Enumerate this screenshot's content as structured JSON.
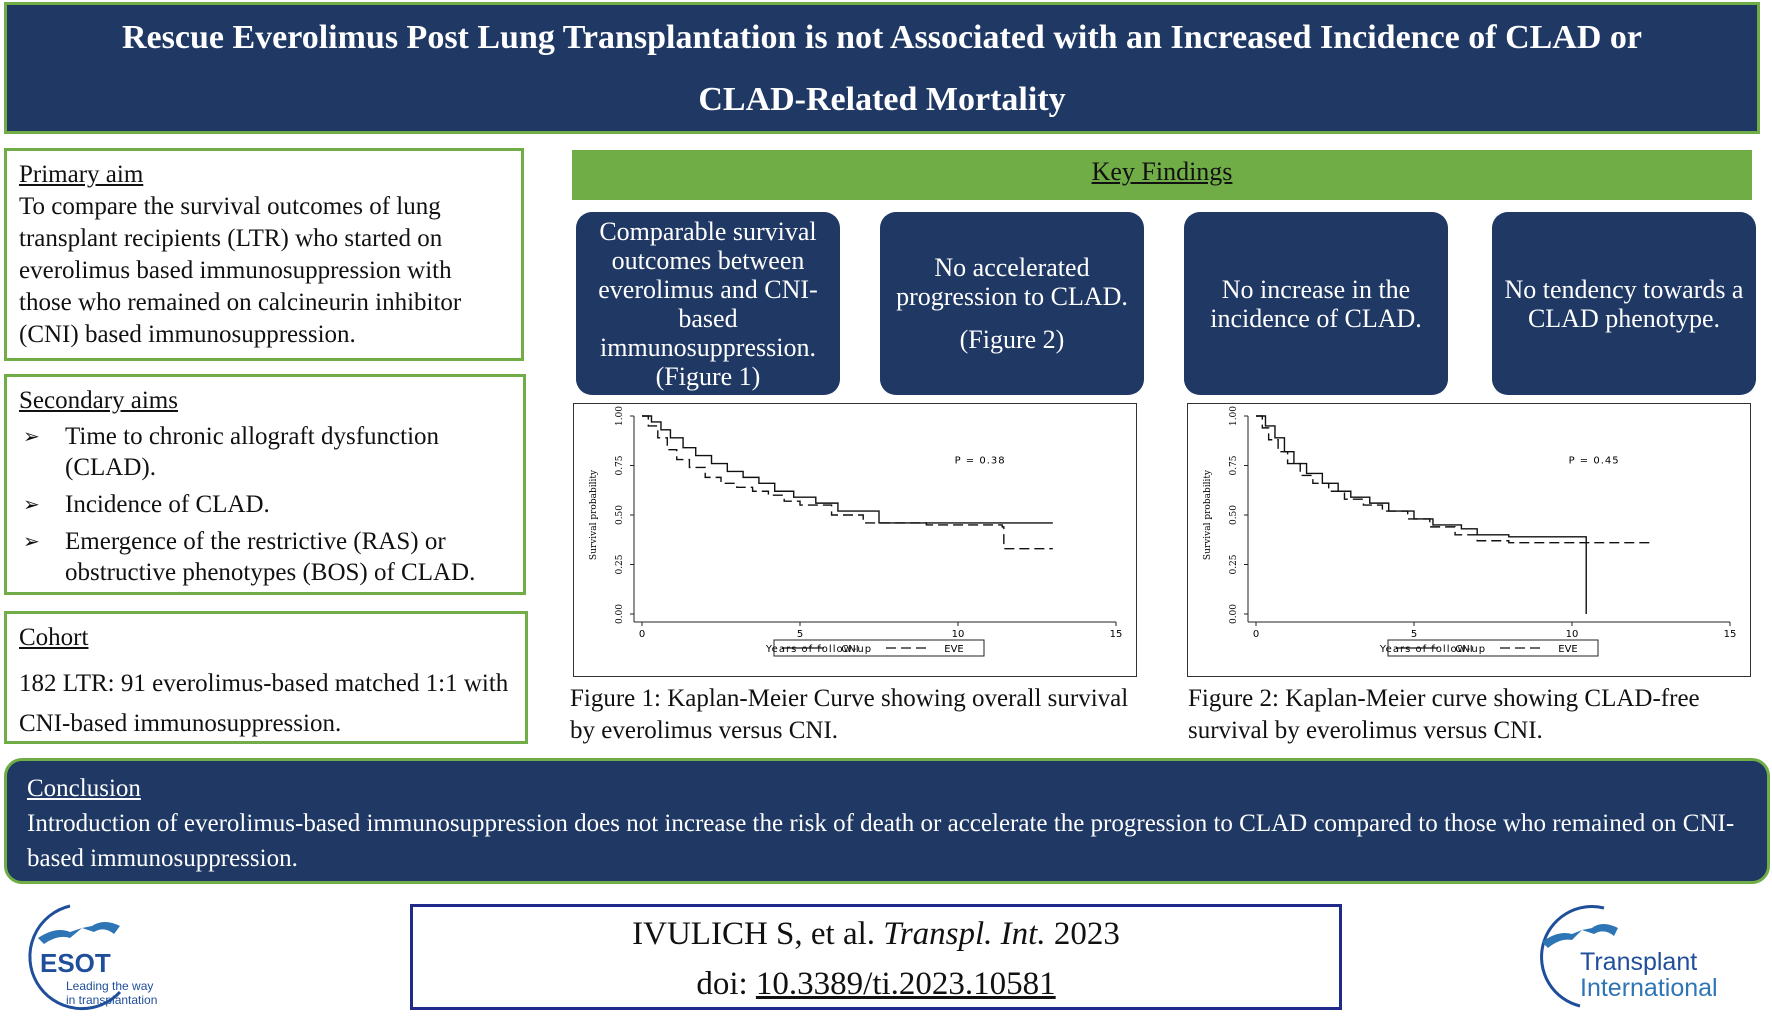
{
  "title": {
    "line1": "Rescue Everolimus Post Lung Transplantation is not Associated with an Increased Incidence of CLAD or",
    "line2": "CLAD-Related Mortality"
  },
  "primary_aim": {
    "heading": "Primary aim",
    "text": "To compare the survival outcomes of lung transplant recipients (LTR) who started on everolimus based immunosuppression with those who remained on calcineurin inhibitor (CNI) based immunosuppression."
  },
  "secondary_aims": {
    "heading": "Secondary aims",
    "items": [
      "Time to chronic allograft dysfunction (CLAD).",
      "Incidence of CLAD.",
      "Emergence of the restrictive (RAS) or obstructive phenotypes (BOS) of CLAD."
    ]
  },
  "cohort": {
    "heading": "Cohort",
    "text": "182 LTR: 91 everolimus-based matched 1:1 with CNI-based immunosuppression."
  },
  "key_findings": {
    "heading": "Key Findings",
    "items": [
      {
        "text": "Comparable survival outcomes between everolimus and CNI-based immunosuppression. (Figure 1)",
        "sub": ""
      },
      {
        "text": "No accelerated progression to CLAD.",
        "sub": "(Figure 2)"
      },
      {
        "text": "No increase in the incidence of CLAD.",
        "sub": ""
      },
      {
        "text": "No tendency towards a CLAD phenotype.",
        "sub": ""
      }
    ]
  },
  "chart_data": [
    {
      "type": "line",
      "title": "",
      "xlabel": "Years of follow-up",
      "ylabel": "Survival probability",
      "xlim": [
        0,
        15
      ],
      "ylim": [
        0,
        1
      ],
      "xticks": [
        "0",
        "5",
        "10",
        "15"
      ],
      "yticks": [
        "0.00",
        "0.25",
        "0.50",
        "0.75",
        "1.00"
      ],
      "annotation": "P = 0.38",
      "legend_position": "bottom",
      "series": [
        {
          "name": "CNI",
          "style": "solid",
          "x": [
            0,
            0.3,
            0.6,
            0.9,
            1.3,
            1.7,
            2.2,
            2.7,
            3.2,
            3.7,
            4.2,
            4.8,
            5.5,
            6.2,
            7.5,
            9,
            11,
            11.5,
            13
          ],
          "y": [
            1.0,
            0.97,
            0.93,
            0.89,
            0.84,
            0.8,
            0.76,
            0.72,
            0.69,
            0.66,
            0.62,
            0.59,
            0.56,
            0.52,
            0.46,
            0.46,
            0.46,
            0.46,
            0.46
          ]
        },
        {
          "name": "EVE",
          "style": "dashed",
          "x": [
            0,
            0.2,
            0.5,
            0.8,
            1.1,
            1.5,
            2.0,
            2.5,
            3.0,
            3.5,
            4.0,
            4.5,
            5.0,
            6.0,
            7.0,
            9.0,
            11.4,
            11.45,
            13
          ],
          "y": [
            1.0,
            0.95,
            0.89,
            0.83,
            0.78,
            0.74,
            0.69,
            0.66,
            0.64,
            0.62,
            0.6,
            0.57,
            0.55,
            0.5,
            0.46,
            0.45,
            0.44,
            0.33,
            0.33
          ]
        }
      ]
    },
    {
      "type": "line",
      "title": "",
      "xlabel": "Years of follow-up",
      "ylabel": "Survival probability",
      "xlim": [
        0,
        15
      ],
      "ylim": [
        0,
        1
      ],
      "xticks": [
        "0",
        "5",
        "10",
        "15"
      ],
      "yticks": [
        "0.00",
        "0.25",
        "0.50",
        "0.75",
        "1.00"
      ],
      "annotation": "P = 0.45",
      "legend_position": "bottom",
      "series": [
        {
          "name": "CNI",
          "style": "solid",
          "x": [
            0,
            0.3,
            0.6,
            0.9,
            1.2,
            1.6,
            2.1,
            2.6,
            3.0,
            3.6,
            4.2,
            5.0,
            5.6,
            6.5,
            7.0,
            8.0,
            10.4,
            10.45
          ],
          "y": [
            1.0,
            0.95,
            0.89,
            0.82,
            0.76,
            0.71,
            0.66,
            0.62,
            0.59,
            0.56,
            0.52,
            0.48,
            0.45,
            0.43,
            0.4,
            0.39,
            0.39,
            0.0
          ]
        },
        {
          "name": "EVE",
          "style": "dashed",
          "x": [
            0,
            0.2,
            0.4,
            0.7,
            1.0,
            1.4,
            1.8,
            2.3,
            2.8,
            3.4,
            4.0,
            4.8,
            5.5,
            6.3,
            7.0,
            8.0,
            12.5
          ],
          "y": [
            1.0,
            0.94,
            0.88,
            0.82,
            0.76,
            0.7,
            0.66,
            0.62,
            0.58,
            0.55,
            0.52,
            0.48,
            0.44,
            0.4,
            0.37,
            0.36,
            0.36
          ]
        }
      ]
    }
  ],
  "figure_captions": [
    "Figure 1: Kaplan-Meier Curve showing overall survival by everolimus versus CNI.",
    "Figure 2: Kaplan-Meier curve showing CLAD-free survival by everolimus versus CNI."
  ],
  "conclusion": {
    "heading": "Conclusion",
    "text": "Introduction of everolimus-based immunosuppression does not increase the risk of death or accelerate the progression to CLAD compared to those who remained on CNI-based immunosuppression."
  },
  "citation": {
    "authors": "IVULICH S, et al.",
    "journal": "Transpl. Int.",
    "year": "2023",
    "doi_label": "doi:",
    "doi": "10.3389/ti.2023.10581"
  },
  "logos": {
    "esot": {
      "name": "ESOT",
      "tagline_1": "Leading the way",
      "tagline_2": "in transplantation"
    },
    "ti": {
      "line1": "Transplant",
      "line2": "International"
    }
  },
  "colors": {
    "navy": "#1f3864",
    "green": "#70ad47",
    "logo_blue": "#1f4e9a",
    "logo_light_blue": "#2e75b6"
  }
}
